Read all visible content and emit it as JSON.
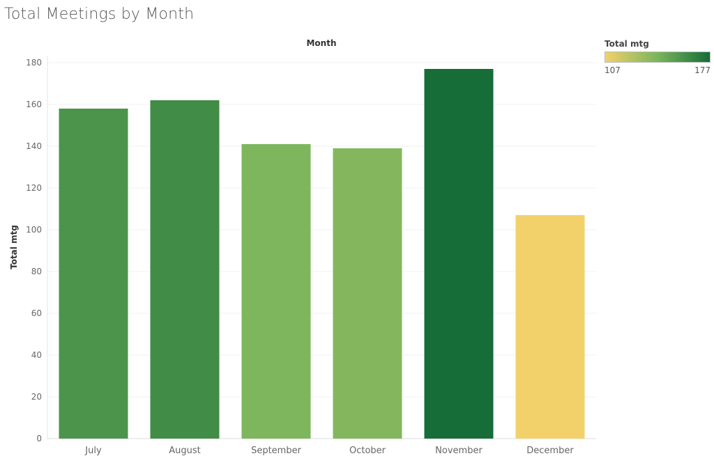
{
  "title": "Total Meetings by Month",
  "colors": {
    "low": "#f2d16b",
    "mid": "#7ab55c",
    "high": "#166d38"
  },
  "legend": {
    "title": "Total mtg",
    "min_label": "107",
    "max_label": "177"
  },
  "chart_data": {
    "type": "bar",
    "title": "Total Meetings by Month",
    "xlabel": "Month",
    "ylabel": "Total mtg",
    "categories": [
      "July",
      "August",
      "September",
      "October",
      "November",
      "December"
    ],
    "values": [
      158,
      162,
      141,
      139,
      177,
      107
    ],
    "ylim": [
      0,
      180
    ],
    "yticks": [
      0,
      20,
      40,
      60,
      80,
      100,
      120,
      140,
      160,
      180
    ],
    "color_range": [
      107,
      177
    ],
    "grid": true,
    "legend_position": "top-right"
  }
}
